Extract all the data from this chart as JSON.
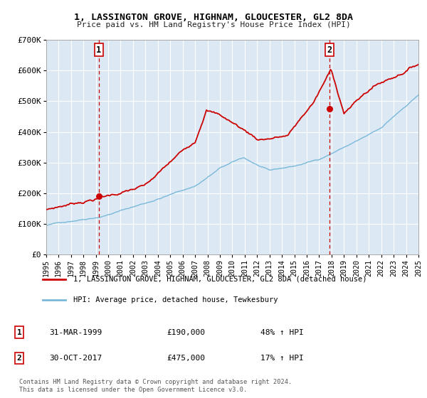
{
  "title": "1, LASSINGTON GROVE, HIGHNAM, GLOUCESTER, GL2 8DA",
  "subtitle": "Price paid vs. HM Land Registry's House Price Index (HPI)",
  "background_color": "#ffffff",
  "plot_bg_color": "#dce9f5",
  "hpi_line_color": "#7ab8d9",
  "price_line_color": "#cc0000",
  "grid_color": "#ffffff",
  "sale1_date_num": 1999.25,
  "sale1_price": 190000,
  "sale1_label": "31-MAR-1999",
  "sale1_text": "£190,000",
  "sale1_hpi_pct": "48% ↑ HPI",
  "sale2_date_num": 2017.83,
  "sale2_price": 475000,
  "sale2_label": "30-OCT-2017",
  "sale2_text": "£475,000",
  "sale2_hpi_pct": "17% ↑ HPI",
  "xmin": 1995,
  "xmax": 2025,
  "ymin": 0,
  "ymax": 700000,
  "yticks": [
    0,
    100000,
    200000,
    300000,
    400000,
    500000,
    600000,
    700000
  ],
  "ytick_labels": [
    "£0",
    "£100K",
    "£200K",
    "£300K",
    "£400K",
    "£500K",
    "£600K",
    "£700K"
  ],
  "xticks": [
    1995,
    1996,
    1997,
    1998,
    1999,
    2000,
    2001,
    2002,
    2003,
    2004,
    2005,
    2006,
    2007,
    2008,
    2009,
    2010,
    2011,
    2012,
    2013,
    2014,
    2015,
    2016,
    2017,
    2018,
    2019,
    2020,
    2021,
    2022,
    2023,
    2024,
    2025
  ],
  "legend1_label": "1, LASSINGTON GROVE, HIGHNAM, GLOUCESTER, GL2 8DA (detached house)",
  "legend2_label": "HPI: Average price, detached house, Tewkesbury",
  "footnote1": "Contains HM Land Registry data © Crown copyright and database right 2024.",
  "footnote2": "This data is licensed under the Open Government Licence v3.0.",
  "vline_color": "#cc0000",
  "sale_marker_color": "#cc0000"
}
